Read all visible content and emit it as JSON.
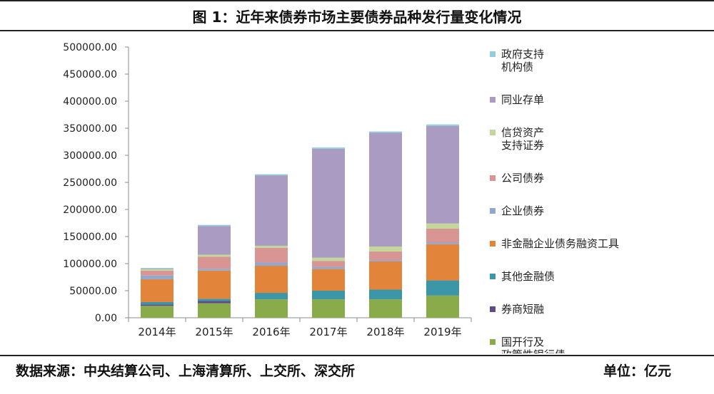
{
  "header": {
    "title": "图 1：近年来债券市场主要债券品种发行量变化情况"
  },
  "footer": {
    "source": "数据来源：中央结算公司、上海清算所、上交所、深交所",
    "unit": "单位：亿元"
  },
  "chart_data": {
    "type": "bar",
    "stacked": true,
    "title": "图 1：近年来债券市场主要债券品种发行量变化情况",
    "categories": [
      "2014年",
      "2015年",
      "2016年",
      "2017年",
      "2018年",
      "2019年"
    ],
    "ylim": [
      0,
      500000
    ],
    "yticks": [
      "0.00",
      "50000.00",
      "100000.00",
      "150000.00",
      "200000.00",
      "250000.00",
      "300000.00",
      "350000.00",
      "400000.00",
      "450000.00",
      "500000.00"
    ],
    "xlabel": "",
    "ylabel": "",
    "grid": false,
    "legend_position": "right",
    "series": [
      {
        "name": "国开行及政策性银行债",
        "legend_lines": [
          "国开行及",
          "政策性银行债"
        ],
        "color": "#8aab4a",
        "values": [
          22000,
          27000,
          34000,
          34000,
          34000,
          41000
        ]
      },
      {
        "name": "券商短融",
        "legend_lines": [
          "券商短融"
        ],
        "color": "#5f4a8b",
        "values": [
          2500,
          4000,
          0,
          0,
          0,
          0
        ]
      },
      {
        "name": "其他金融债",
        "legend_lines": [
          "其他金融债"
        ],
        "color": "#3b96a8",
        "values": [
          4500,
          4000,
          12000,
          16000,
          18000,
          28000
        ]
      },
      {
        "name": "非金融企业债务融资工具",
        "legend_lines": [
          "非金融企业债务融资工具"
        ],
        "color": "#e2843a",
        "values": [
          42000,
          52000,
          50000,
          40000,
          52000,
          67000
        ]
      },
      {
        "name": "企业债券",
        "legend_lines": [
          "企业债券"
        ],
        "color": "#8fa9cf",
        "values": [
          7000,
          3500,
          6000,
          4000,
          2500,
          3500
        ]
      },
      {
        "name": "公司债券",
        "legend_lines": [
          "公司债券"
        ],
        "color": "#d99594",
        "values": [
          9000,
          22000,
          27000,
          11000,
          16000,
          25000
        ]
      },
      {
        "name": "信贷资产支持证券",
        "legend_lines": [
          "信贷资产",
          "支持证券"
        ],
        "color": "#c4d79b",
        "values": [
          2500,
          4000,
          4000,
          6000,
          9000,
          9500
        ]
      },
      {
        "name": "同业存单",
        "legend_lines": [
          "同业存单"
        ],
        "color": "#a99bc2",
        "values": [
          1000,
          53000,
          130000,
          201000,
          210000,
          180000
        ]
      },
      {
        "name": "政府支持机构债",
        "legend_lines": [
          "政府支持",
          "机构债"
        ],
        "color": "#92cddc",
        "values": [
          1500,
          2000,
          2000,
          2500,
          2500,
          3000
        ]
      }
    ]
  }
}
